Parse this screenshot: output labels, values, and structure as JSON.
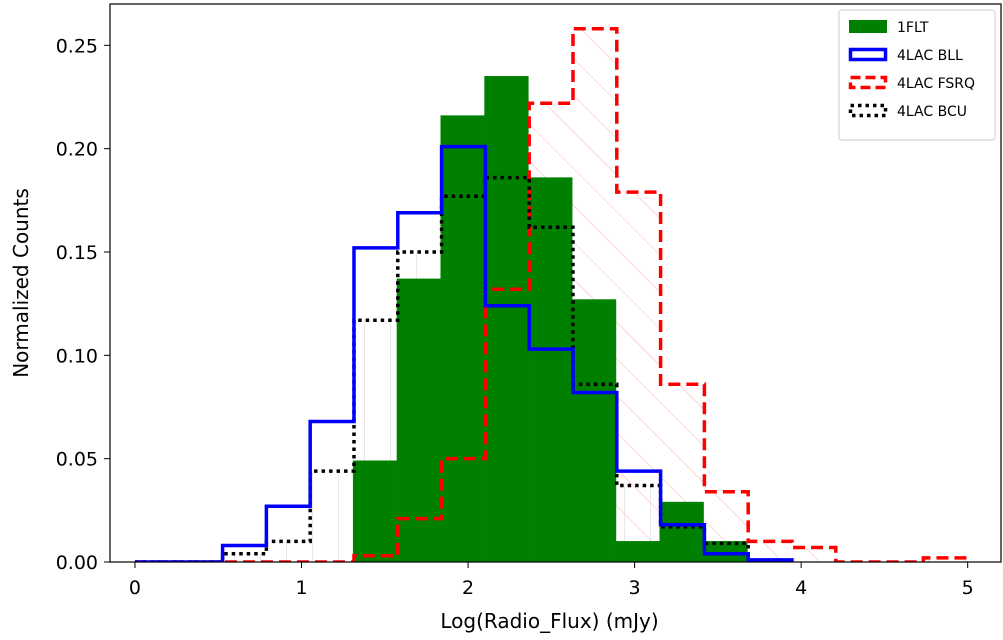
{
  "chart_data": {
    "type": "histogram",
    "xlabel": "Log(Radio_Flux) (mJy)",
    "ylabel": "Normalized Counts",
    "xlim": [
      -0.15,
      5.2
    ],
    "ylim": [
      0.0,
      0.27
    ],
    "xticks": [
      0,
      1,
      2,
      3,
      4,
      5
    ],
    "yticks": [
      0.0,
      0.05,
      0.1,
      0.15,
      0.2,
      0.25
    ],
    "ytick_labels": [
      "0.00",
      "0.05",
      "0.10",
      "0.15",
      "0.20",
      "0.25"
    ],
    "legend_position": "top-right",
    "series": [
      {
        "name": "1FLT",
        "style": "filled",
        "color": "#008000",
        "edges": [
          1.31,
          1.573,
          1.836,
          2.099,
          2.362,
          2.625,
          2.888,
          3.151,
          3.414,
          3.677
        ],
        "values": [
          0.049,
          0.137,
          0.216,
          0.235,
          0.186,
          0.127,
          0.01,
          0.029,
          0.01
        ]
      },
      {
        "name": "4LAC BLL",
        "style": "step-solid",
        "color": "#0000ff",
        "edges": [
          0.0,
          0.263,
          0.526,
          0.789,
          1.052,
          1.315,
          1.578,
          1.841,
          2.104,
          2.367,
          2.63,
          2.893,
          3.156,
          3.419,
          3.682,
          3.945
        ],
        "values": [
          0.0,
          0.0,
          0.008,
          0.027,
          0.068,
          0.152,
          0.169,
          0.201,
          0.124,
          0.103,
          0.082,
          0.044,
          0.018,
          0.004,
          0.001
        ]
      },
      {
        "name": "4LAC FSRQ",
        "style": "step-dashed",
        "color": "#ff0000",
        "edges": [
          0.0,
          0.263,
          0.526,
          0.789,
          1.052,
          1.315,
          1.578,
          1.841,
          2.104,
          2.367,
          2.63,
          2.893,
          3.156,
          3.419,
          3.682,
          3.945,
          4.208,
          4.471,
          4.734,
          4.997
        ],
        "values": [
          0.0,
          0.0,
          0.0,
          0.0,
          0.0,
          0.003,
          0.021,
          0.05,
          0.132,
          0.222,
          0.258,
          0.179,
          0.086,
          0.034,
          0.01,
          0.007,
          0.0,
          0.0,
          0.002
        ]
      },
      {
        "name": "4LAC BCU",
        "style": "step-dotted",
        "color": "#000000",
        "edges": [
          0.0,
          0.263,
          0.526,
          0.789,
          1.052,
          1.315,
          1.578,
          1.841,
          2.104,
          2.367,
          2.63,
          2.893,
          3.156,
          3.419,
          3.682
        ],
        "values": [
          0.0,
          0.0,
          0.004,
          0.01,
          0.044,
          0.117,
          0.15,
          0.177,
          0.186,
          0.162,
          0.086,
          0.037,
          0.017,
          0.009
        ]
      }
    ]
  }
}
